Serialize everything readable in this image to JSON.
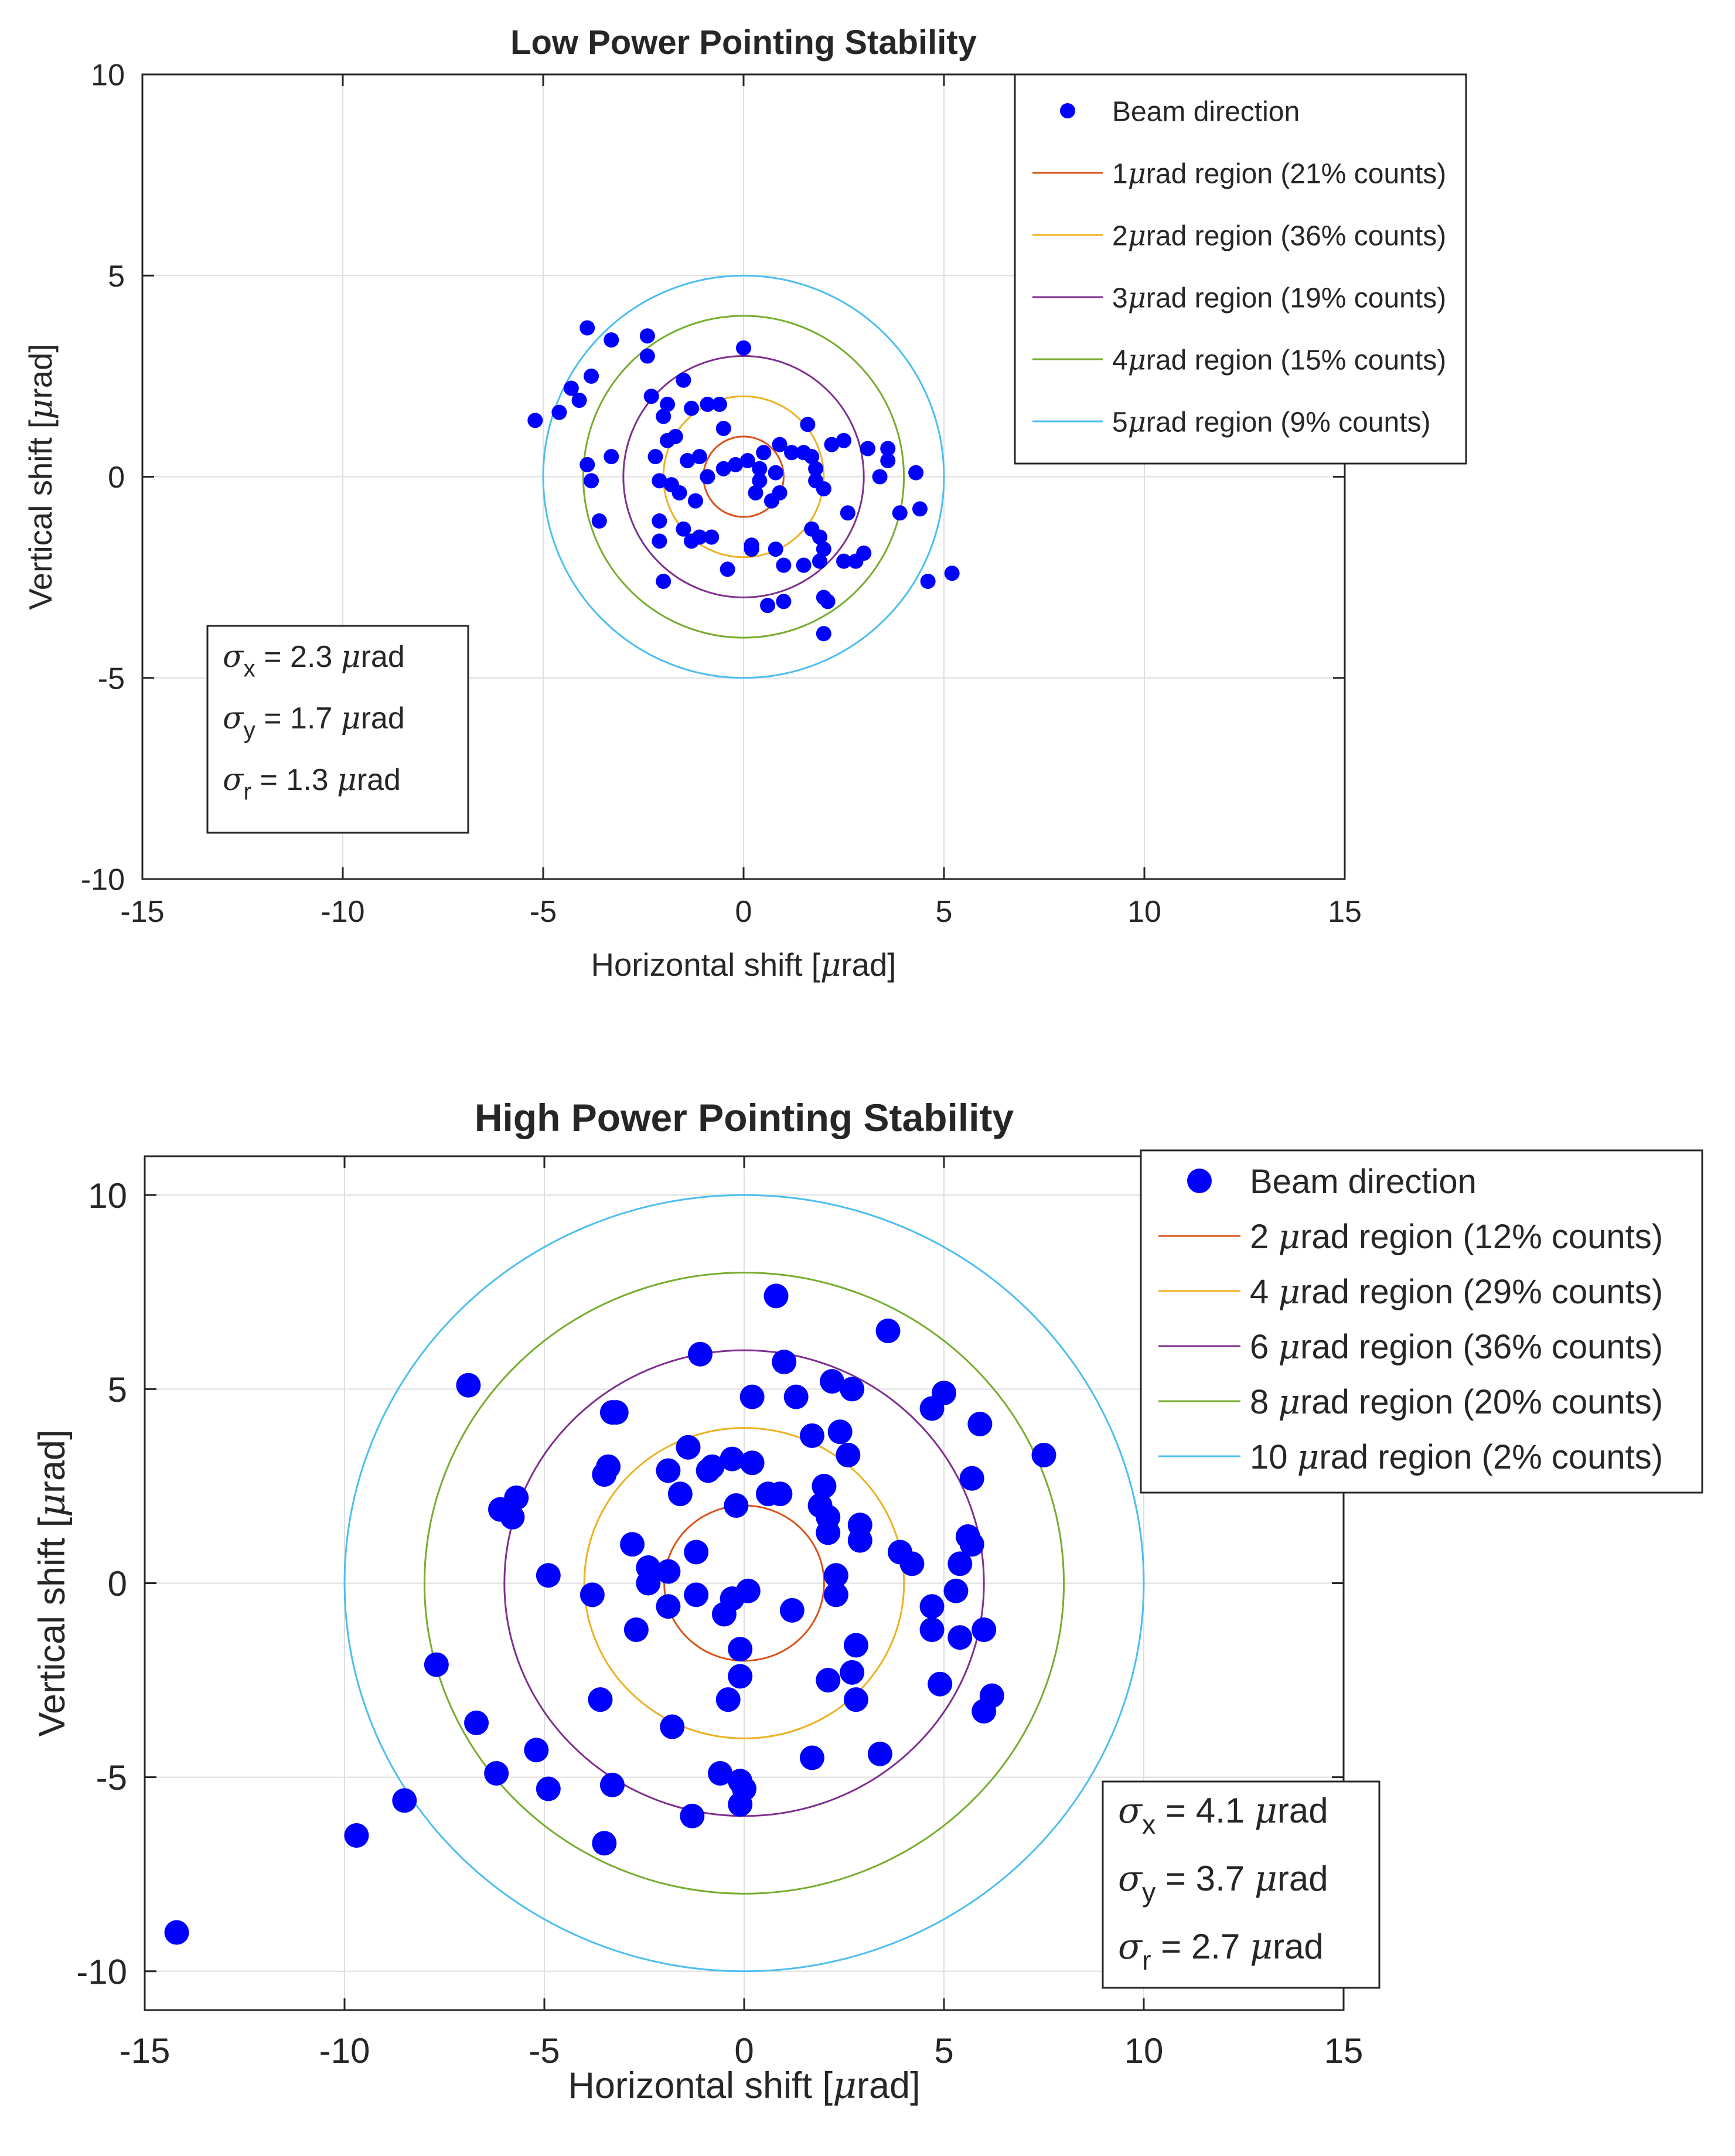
{
  "chart_data": [
    {
      "type": "scatter",
      "title": "Low Power Pointing Stability",
      "xlabel": "Horizontal shift [μrad]",
      "ylabel": "Vertical shift [μrad]",
      "xlim": [
        -15,
        15
      ],
      "ylim": [
        -10,
        10
      ],
      "xticks": [
        -15,
        -10,
        -5,
        0,
        5,
        10,
        15
      ],
      "yticks": [
        -10,
        -5,
        0,
        5,
        10
      ],
      "grid": true,
      "legend_position": "top-right",
      "stats_box_position": "bottom-left",
      "series": [
        {
          "name": "Beam direction",
          "kind": "points",
          "color": "#0000FF",
          "points": [
            [
              -3.9,
              3.7
            ],
            [
              -3.3,
              3.4
            ],
            [
              -2.4,
              3.5
            ],
            [
              -2.4,
              3.0
            ],
            [
              -3.8,
              2.5
            ],
            [
              -4.3,
              2.2
            ],
            [
              -4.1,
              1.9
            ],
            [
              -4.6,
              1.6
            ],
            [
              -5.2,
              1.4
            ],
            [
              -2.3,
              2.0
            ],
            [
              -1.9,
              1.8
            ],
            [
              -1.5,
              2.4
            ],
            [
              -1.3,
              1.7
            ],
            [
              -0.9,
              1.8
            ],
            [
              -0.6,
              1.8
            ],
            [
              -0.5,
              1.2
            ],
            [
              0.0,
              3.2
            ],
            [
              -2.0,
              1.5
            ],
            [
              -1.7,
              1.0
            ],
            [
              -1.9,
              0.9
            ],
            [
              -2.2,
              0.5
            ],
            [
              -1.4,
              0.4
            ],
            [
              -1.1,
              0.5
            ],
            [
              -3.3,
              0.5
            ],
            [
              -3.9,
              0.3
            ],
            [
              -3.8,
              -0.1
            ],
            [
              -3.6,
              -1.1
            ],
            [
              -2.1,
              -0.1
            ],
            [
              -1.8,
              -0.2
            ],
            [
              -1.6,
              -0.4
            ],
            [
              -1.2,
              -0.6
            ],
            [
              -0.9,
              0.0
            ],
            [
              -0.5,
              0.2
            ],
            [
              -0.2,
              0.3
            ],
            [
              0.1,
              0.4
            ],
            [
              0.5,
              0.6
            ],
            [
              0.4,
              0.2
            ],
            [
              0.4,
              -0.1
            ],
            [
              0.3,
              -0.4
            ],
            [
              0.9,
              0.8
            ],
            [
              1.2,
              0.6
            ],
            [
              1.5,
              0.6
            ],
            [
              1.7,
              0.5
            ],
            [
              1.6,
              1.3
            ],
            [
              1.8,
              0.2
            ],
            [
              1.8,
              -0.1
            ],
            [
              2.0,
              -0.3
            ],
            [
              2.2,
              0.8
            ],
            [
              2.5,
              0.9
            ],
            [
              3.1,
              0.7
            ],
            [
              3.6,
              0.7
            ],
            [
              3.6,
              0.4
            ],
            [
              3.4,
              0.0
            ],
            [
              4.3,
              0.1
            ],
            [
              3.9,
              -0.9
            ],
            [
              4.4,
              -0.8
            ],
            [
              0.8,
              0.1
            ],
            [
              0.9,
              -0.4
            ],
            [
              0.7,
              -0.6
            ],
            [
              -2.1,
              -1.1
            ],
            [
              -2.1,
              -1.6
            ],
            [
              -1.5,
              -1.3
            ],
            [
              -1.3,
              -1.6
            ],
            [
              -1.1,
              -1.5
            ],
            [
              -0.8,
              -1.5
            ],
            [
              -0.4,
              -2.3
            ],
            [
              0.2,
              -1.7
            ],
            [
              0.2,
              -1.8
            ],
            [
              0.8,
              -1.8
            ],
            [
              1.0,
              -2.2
            ],
            [
              1.5,
              -2.2
            ],
            [
              1.9,
              -2.1
            ],
            [
              2.0,
              -1.8
            ],
            [
              1.9,
              -1.5
            ],
            [
              1.7,
              -1.3
            ],
            [
              2.5,
              -2.1
            ],
            [
              2.8,
              -2.1
            ],
            [
              3.0,
              -1.9
            ],
            [
              2.6,
              -0.9
            ],
            [
              0.6,
              -3.2
            ],
            [
              1.0,
              -3.1
            ],
            [
              2.0,
              -3.0
            ],
            [
              2.1,
              -3.1
            ],
            [
              2.0,
              -3.9
            ],
            [
              -2.0,
              -2.6
            ],
            [
              4.6,
              -2.6
            ],
            [
              5.2,
              -2.4
            ]
          ]
        },
        {
          "name": "1μrad region (21% counts)",
          "kind": "circle",
          "radius": 1,
          "color": "#D95319"
        },
        {
          "name": "2μrad region (36% counts)",
          "kind": "circle",
          "radius": 2,
          "color": "#EDB120"
        },
        {
          "name": "3μrad region (19% counts)",
          "kind": "circle",
          "radius": 3,
          "color": "#7E2F8E"
        },
        {
          "name": "4μrad region (15% counts)",
          "kind": "circle",
          "radius": 4,
          "color": "#77AC30"
        },
        {
          "name": "5μrad region (9% counts)",
          "kind": "circle",
          "radius": 5,
          "color": "#4DBEEE"
        }
      ],
      "stats": [
        {
          "sym": "σ",
          "sub": "x",
          "text": " = 2.3 μrad"
        },
        {
          "sym": "σ",
          "sub": "y",
          "text": " = 1.7 μrad"
        },
        {
          "sym": "σ",
          "sub": "r",
          "text": " = 1.3 μrad"
        }
      ]
    },
    {
      "type": "scatter",
      "title": "High Power Pointing Stability",
      "xlabel": "Horizontal shift [μrad]",
      "ylabel": "Vertical shift [μrad]",
      "xlim": [
        -15,
        15
      ],
      "ylim": [
        -11,
        11
      ],
      "xticks": [
        -15,
        -10,
        -5,
        0,
        5,
        10,
        15
      ],
      "yticks": [
        -10,
        -5,
        0,
        5,
        10
      ],
      "grid": true,
      "legend_position": "top-right",
      "stats_box_position": "bottom-right",
      "series": [
        {
          "name": "Beam direction",
          "kind": "points",
          "color": "#0000FF",
          "points": [
            [
              0.8,
              7.4
            ],
            [
              3.6,
              6.5
            ],
            [
              -1.1,
              5.9
            ],
            [
              1.0,
              5.7
            ],
            [
              -6.9,
              5.1
            ],
            [
              2.2,
              5.2
            ],
            [
              2.7,
              5.0
            ],
            [
              1.3,
              4.8
            ],
            [
              0.2,
              4.8
            ],
            [
              5.0,
              4.9
            ],
            [
              4.7,
              4.5
            ],
            [
              5.9,
              4.1
            ],
            [
              -3.2,
              4.4
            ],
            [
              -3.3,
              4.4
            ],
            [
              2.4,
              3.9
            ],
            [
              1.7,
              3.8
            ],
            [
              -1.4,
              3.5
            ],
            [
              -3.4,
              3.0
            ],
            [
              -3.5,
              2.8
            ],
            [
              -1.9,
              2.9
            ],
            [
              -1.6,
              2.3
            ],
            [
              -0.9,
              2.9
            ],
            [
              -0.8,
              3.0
            ],
            [
              -0.3,
              3.2
            ],
            [
              0.2,
              3.1
            ],
            [
              2.6,
              3.3
            ],
            [
              5.7,
              2.7
            ],
            [
              7.5,
              3.3
            ],
            [
              -6.1,
              1.9
            ],
            [
              -5.7,
              2.2
            ],
            [
              -5.8,
              1.7
            ],
            [
              0.6,
              2.3
            ],
            [
              0.9,
              2.3
            ],
            [
              2.0,
              2.5
            ],
            [
              2.1,
              1.7
            ],
            [
              1.9,
              2.0
            ],
            [
              -0.2,
              2.0
            ],
            [
              2.1,
              1.3
            ],
            [
              2.9,
              1.5
            ],
            [
              2.9,
              1.1
            ],
            [
              3.9,
              0.8
            ],
            [
              4.2,
              0.5
            ],
            [
              5.6,
              1.2
            ],
            [
              5.7,
              1.0
            ],
            [
              5.4,
              0.5
            ],
            [
              -2.8,
              1.0
            ],
            [
              -2.4,
              0.4
            ],
            [
              -2.4,
              0.0
            ],
            [
              -1.2,
              0.8
            ],
            [
              -1.9,
              0.3
            ],
            [
              -4.9,
              0.2
            ],
            [
              -3.8,
              -0.3
            ],
            [
              2.3,
              0.2
            ],
            [
              2.3,
              -0.3
            ],
            [
              1.2,
              -0.7
            ],
            [
              -1.9,
              -0.6
            ],
            [
              -1.2,
              -0.3
            ],
            [
              -0.5,
              -0.8
            ],
            [
              -0.3,
              -0.4
            ],
            [
              0.1,
              -0.2
            ],
            [
              4.7,
              -0.6
            ],
            [
              5.3,
              -0.2
            ],
            [
              4.7,
              -1.2
            ],
            [
              5.4,
              -1.4
            ],
            [
              6.0,
              -1.2
            ],
            [
              -2.7,
              -1.2
            ],
            [
              -0.1,
              -1.7
            ],
            [
              -0.1,
              -2.4
            ],
            [
              2.1,
              -2.5
            ],
            [
              2.7,
              -2.3
            ],
            [
              2.8,
              -1.6
            ],
            [
              -7.7,
              -2.1
            ],
            [
              -6.7,
              -3.6
            ],
            [
              -3.6,
              -3.0
            ],
            [
              -1.8,
              -3.7
            ],
            [
              -0.4,
              -3.0
            ],
            [
              2.8,
              -3.0
            ],
            [
              4.9,
              -2.6
            ],
            [
              6.0,
              -3.3
            ],
            [
              6.2,
              -2.9
            ],
            [
              -5.2,
              -4.3
            ],
            [
              -6.2,
              -4.9
            ],
            [
              -4.9,
              -5.3
            ],
            [
              -3.3,
              -5.2
            ],
            [
              -0.6,
              -4.9
            ],
            [
              -0.1,
              -5.1
            ],
            [
              0.0,
              -5.3
            ],
            [
              -0.1,
              -5.7
            ],
            [
              1.7,
              -4.5
            ],
            [
              3.4,
              -4.4
            ],
            [
              -1.3,
              -6.0
            ],
            [
              -3.5,
              -6.7
            ],
            [
              -9.7,
              -6.5
            ],
            [
              -8.5,
              -5.6
            ],
            [
              -14.2,
              -9.0
            ]
          ]
        },
        {
          "name": "2 μrad region (12% counts)",
          "kind": "circle",
          "radius": 2,
          "color": "#D95319"
        },
        {
          "name": "4 μrad region (29% counts)",
          "kind": "circle",
          "radius": 4,
          "color": "#EDB120"
        },
        {
          "name": "6 μrad region (36% counts)",
          "kind": "circle",
          "radius": 6,
          "color": "#7E2F8E"
        },
        {
          "name": "8 μrad region (20% counts)",
          "kind": "circle",
          "radius": 8,
          "color": "#77AC30"
        },
        {
          "name": "10 μrad region (2% counts)",
          "kind": "circle",
          "radius": 10,
          "color": "#4DBEEE"
        }
      ],
      "stats": [
        {
          "sym": "σ",
          "sub": "x",
          "text": " = 4.1 μrad"
        },
        {
          "sym": "σ",
          "sub": "y",
          "text": " = 3.7 μrad"
        },
        {
          "sym": "σ",
          "sub": "r",
          "text": " = 2.7 μrad"
        }
      ]
    }
  ]
}
